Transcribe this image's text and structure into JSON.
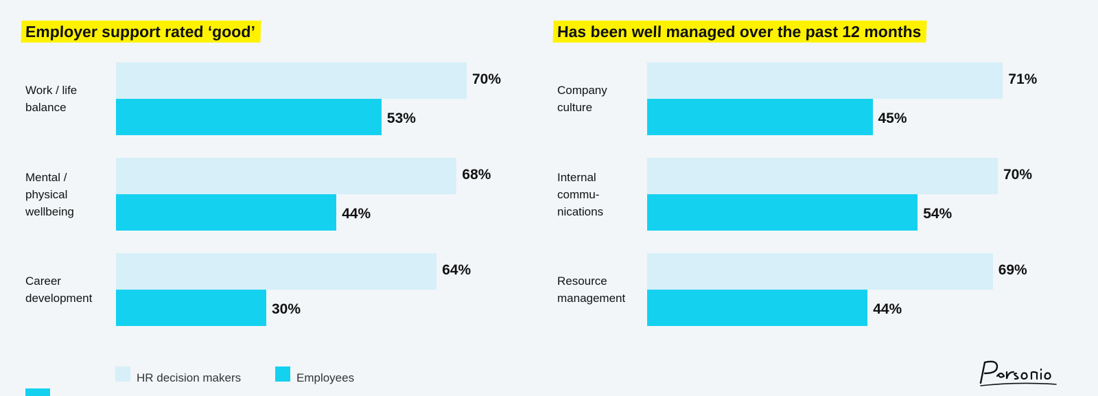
{
  "colors": {
    "hr": "#d6eff8",
    "employees": "#15d1f0",
    "highlight": "#fff200"
  },
  "legend": [
    {
      "label": "HR decision makers",
      "color": "#d6eff8"
    },
    {
      "label": "Employees",
      "color": "#15d1f0"
    }
  ],
  "logo": {
    "text": "Personio",
    "icon": "personio-logo-icon"
  },
  "chart_data": [
    {
      "type": "bar",
      "orientation": "horizontal",
      "title": "Employer support rated ‘good’",
      "categories": [
        "Work / life\nbalance",
        "Mental /\nphysical\nwellbeing",
        "Career\ndevelopment"
      ],
      "series": [
        {
          "name": "HR decision makers",
          "values": [
            70,
            68,
            64
          ]
        },
        {
          "name": "Employees",
          "values": [
            53,
            44,
            30
          ]
        }
      ],
      "value_labels": [
        [
          "70%",
          "68%",
          "64%"
        ],
        [
          "53%",
          "44%",
          "30%"
        ]
      ],
      "unit": "%",
      "xlim": [
        0,
        100
      ],
      "grid": false,
      "legend_position": "bottom-left"
    },
    {
      "type": "bar",
      "orientation": "horizontal",
      "title": "Has been well managed over the past 12 months",
      "categories": [
        "Company\nculture",
        "Internal\ncommu-\nnications",
        "Resource\nmanagement"
      ],
      "series": [
        {
          "name": "HR decision makers",
          "values": [
            71,
            70,
            69
          ]
        },
        {
          "name": "Employees",
          "values": [
            45,
            54,
            44
          ]
        }
      ],
      "value_labels": [
        [
          "71%",
          "70%",
          "69%"
        ],
        [
          "45%",
          "54%",
          "44%"
        ]
      ],
      "unit": "%",
      "xlim": [
        0,
        100
      ],
      "grid": false,
      "legend_position": "bottom-left"
    }
  ]
}
